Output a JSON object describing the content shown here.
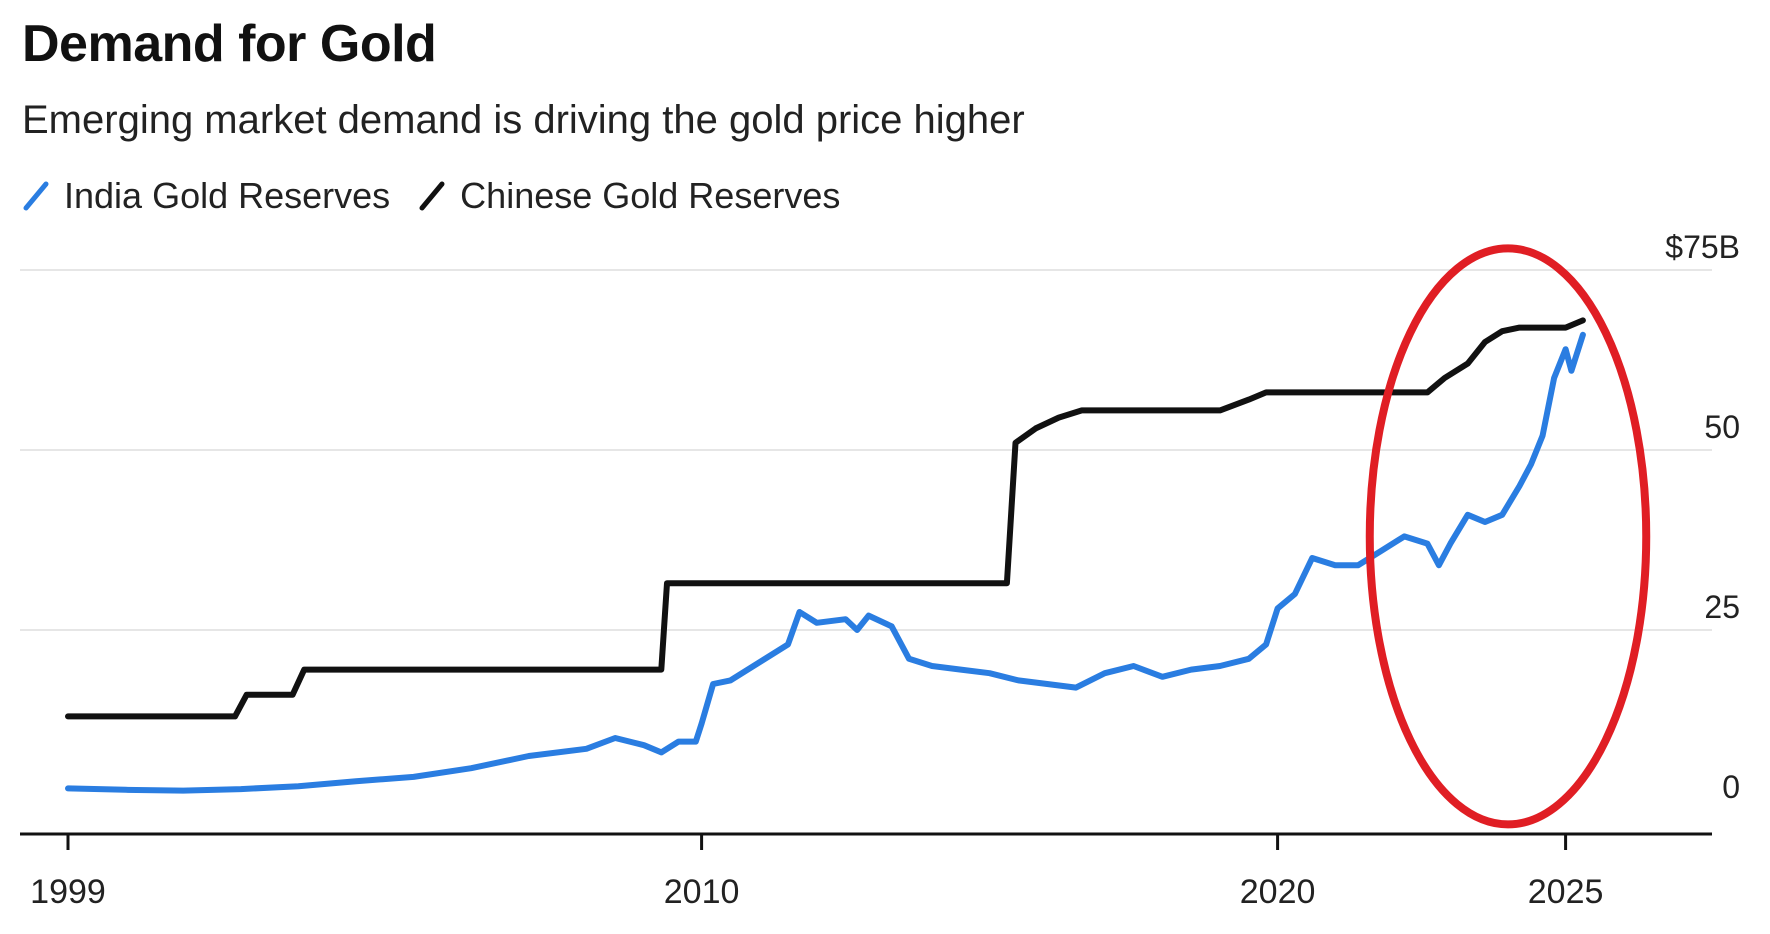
{
  "chart_data": {
    "type": "line",
    "title": "Demand for Gold",
    "subtitle": "Emerging market demand is driving the gold price higher",
    "xlabel": "",
    "ylabel": "",
    "x_ticks": [
      "1999",
      "2010",
      "2020",
      "2025"
    ],
    "y_ticks": [
      "0",
      "25",
      "50",
      "$75B"
    ],
    "xlim": [
      1999,
      2026.5
    ],
    "ylim": [
      0,
      75
    ],
    "grid": true,
    "legend_position": "top-left",
    "colors": {
      "india": "#2a7de1",
      "china": "#111111",
      "annotation": "#e01e24"
    },
    "annotation": {
      "shape": "ellipse",
      "x_center": 2024,
      "y_center": 38,
      "x_radius": 2.4,
      "y_radius": 40
    },
    "series": [
      {
        "name": "India Gold Reserves",
        "color": "#2a7de1",
        "points": [
          [
            1999,
            3
          ],
          [
            2000,
            2.8
          ],
          [
            2001,
            2.7
          ],
          [
            2002,
            2.9
          ],
          [
            2003,
            3.3
          ],
          [
            2004,
            4
          ],
          [
            2005,
            4.6
          ],
          [
            2006,
            5.8
          ],
          [
            2007,
            7.5
          ],
          [
            2008,
            8.5
          ],
          [
            2008.5,
            10
          ],
          [
            2009,
            9
          ],
          [
            2009.3,
            8
          ],
          [
            2009.6,
            9.5
          ],
          [
            2009.9,
            9.5
          ],
          [
            2010,
            12
          ],
          [
            2010.2,
            17.5
          ],
          [
            2010.5,
            18
          ],
          [
            2011,
            20.5
          ],
          [
            2011.5,
            23
          ],
          [
            2011.7,
            27.5
          ],
          [
            2012,
            26
          ],
          [
            2012.5,
            26.5
          ],
          [
            2012.7,
            25
          ],
          [
            2012.9,
            27
          ],
          [
            2013.3,
            25.5
          ],
          [
            2013.6,
            21
          ],
          [
            2014,
            20
          ],
          [
            2014.5,
            19.5
          ],
          [
            2015,
            19
          ],
          [
            2015.5,
            18
          ],
          [
            2016,
            17.5
          ],
          [
            2016.5,
            17
          ],
          [
            2017,
            19
          ],
          [
            2017.5,
            20
          ],
          [
            2018,
            18.5
          ],
          [
            2018.5,
            19.5
          ],
          [
            2019,
            20
          ],
          [
            2019.5,
            21
          ],
          [
            2019.8,
            23
          ],
          [
            2020,
            28
          ],
          [
            2020.3,
            30
          ],
          [
            2020.6,
            35
          ],
          [
            2021,
            34
          ],
          [
            2021.4,
            34
          ],
          [
            2021.8,
            36
          ],
          [
            2022.2,
            38
          ],
          [
            2022.6,
            37
          ],
          [
            2022.8,
            34
          ],
          [
            2023,
            37
          ],
          [
            2023.3,
            41
          ],
          [
            2023.6,
            40
          ],
          [
            2023.9,
            41
          ],
          [
            2024.2,
            45
          ],
          [
            2024.4,
            48
          ],
          [
            2024.6,
            52
          ],
          [
            2024.8,
            60
          ],
          [
            2025,
            64
          ],
          [
            2025.1,
            61
          ],
          [
            2025.3,
            66
          ]
        ]
      },
      {
        "name": "Chinese Gold Reserves",
        "color": "#111111",
        "points": [
          [
            1999,
            13
          ],
          [
            2001.9,
            13
          ],
          [
            2002.1,
            16
          ],
          [
            2002.9,
            16
          ],
          [
            2003.1,
            19.5
          ],
          [
            2009.3,
            19.5
          ],
          [
            2009.4,
            31.5
          ],
          [
            2015.3,
            31.5
          ],
          [
            2015.45,
            51
          ],
          [
            2015.8,
            53
          ],
          [
            2016.2,
            54.5
          ],
          [
            2016.6,
            55.5
          ],
          [
            2019.0,
            55.5
          ],
          [
            2019.5,
            57
          ],
          [
            2019.8,
            58
          ],
          [
            2022.6,
            58
          ],
          [
            2022.9,
            60
          ],
          [
            2023.3,
            62
          ],
          [
            2023.6,
            65
          ],
          [
            2023.9,
            66.5
          ],
          [
            2024.2,
            67
          ],
          [
            2024.6,
            67
          ],
          [
            2025,
            67
          ],
          [
            2025.3,
            68
          ]
        ]
      }
    ]
  }
}
